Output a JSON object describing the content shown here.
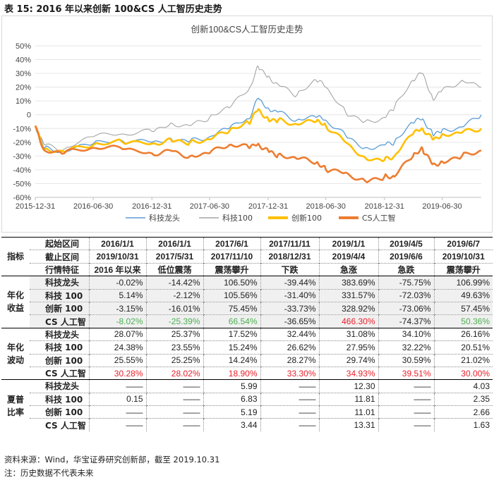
{
  "caption": "表 15: 2016 年以来创新 100&CS 人工智历史走势",
  "colors": {
    "tech_leader": "#5b9bd5",
    "tech100": "#a5a5a5",
    "innov100": "#ffc000",
    "cs_ai": "#ed7d31",
    "green": "#4caf50",
    "red": "#e8202a"
  },
  "chart_data": {
    "type": "line",
    "title": "创新100&CS人工智历史走势",
    "x_tick_labels": [
      "2015-12-31",
      "2016-06-30",
      "2016-12-31",
      "2017-06-30",
      "2017-12-31",
      "2018-06-30",
      "2018-12-31",
      "2019-06-30"
    ],
    "y_tick_labels": [
      "50%",
      "40%",
      "30%",
      "20%",
      "10%",
      "0",
      "-10%",
      "-20%",
      "-30%",
      "-40%",
      "-50%",
      "-60%"
    ],
    "ylim": [
      -60,
      50
    ],
    "y_unit": "%",
    "x_range": [
      "2015-12-31",
      "2019-10-31"
    ],
    "series": [
      {
        "name": "科技100",
        "color": "#a5a5a5",
        "points": [
          [
            "2015-12-31",
            -8
          ],
          [
            "2016-01-29",
            -22
          ],
          [
            "2016-03-31",
            -25
          ],
          [
            "2016-06-30",
            -16
          ],
          [
            "2016-09-30",
            -14
          ],
          [
            "2016-12-31",
            -12
          ],
          [
            "2017-02-28",
            -6
          ],
          [
            "2017-04-30",
            -8
          ],
          [
            "2017-06-30",
            -2
          ],
          [
            "2017-08-31",
            5
          ],
          [
            "2017-10-31",
            18
          ],
          [
            "2017-11-30",
            35
          ],
          [
            "2017-12-31",
            28
          ],
          [
            "2018-01-31",
            22
          ],
          [
            "2018-03-31",
            14
          ],
          [
            "2018-05-31",
            25
          ],
          [
            "2018-06-30",
            20
          ],
          [
            "2018-08-31",
            2
          ],
          [
            "2018-10-31",
            -5
          ],
          [
            "2018-12-31",
            -2
          ],
          [
            "2019-01-31",
            5
          ],
          [
            "2019-03-31",
            25
          ],
          [
            "2019-04-30",
            30
          ],
          [
            "2019-05-31",
            12
          ],
          [
            "2019-06-30",
            18
          ],
          [
            "2019-08-31",
            25
          ],
          [
            "2019-10-31",
            20
          ]
        ]
      },
      {
        "name": "科技龙头",
        "color": "#5b9bd5",
        "points": [
          [
            "2015-12-31",
            -8
          ],
          [
            "2016-01-29",
            -24
          ],
          [
            "2016-03-31",
            -27
          ],
          [
            "2016-06-30",
            -21
          ],
          [
            "2016-09-30",
            -19
          ],
          [
            "2016-12-31",
            -20
          ],
          [
            "2017-02-28",
            -17
          ],
          [
            "2017-04-30",
            -19
          ],
          [
            "2017-06-30",
            -16
          ],
          [
            "2017-08-31",
            -10
          ],
          [
            "2017-10-31",
            -3
          ],
          [
            "2017-11-30",
            12
          ],
          [
            "2017-12-31",
            5
          ],
          [
            "2018-01-31",
            2
          ],
          [
            "2018-03-31",
            -4
          ],
          [
            "2018-05-31",
            -2
          ],
          [
            "2018-06-30",
            -4
          ],
          [
            "2018-08-31",
            -15
          ],
          [
            "2018-10-31",
            -24
          ],
          [
            "2018-12-31",
            -22
          ],
          [
            "2019-01-31",
            -20
          ],
          [
            "2019-03-31",
            -6
          ],
          [
            "2019-04-30",
            -3
          ],
          [
            "2019-05-31",
            -14
          ],
          [
            "2019-06-30",
            -11
          ],
          [
            "2019-08-31",
            -9
          ],
          [
            "2019-10-31",
            -0.02
          ]
        ]
      },
      {
        "name": "创新100",
        "color": "#ffc000",
        "points": [
          [
            "2015-12-31",
            -8
          ],
          [
            "2016-01-29",
            -25
          ],
          [
            "2016-03-31",
            -27
          ],
          [
            "2016-06-30",
            -22
          ],
          [
            "2016-09-30",
            -20
          ],
          [
            "2016-12-31",
            -21
          ],
          [
            "2017-02-28",
            -18
          ],
          [
            "2017-04-30",
            -20
          ],
          [
            "2017-06-30",
            -18
          ],
          [
            "2017-08-31",
            -12
          ],
          [
            "2017-10-31",
            -6
          ],
          [
            "2017-11-30",
            4
          ],
          [
            "2017-12-31",
            -3
          ],
          [
            "2018-01-31",
            -4
          ],
          [
            "2018-03-31",
            -7
          ],
          [
            "2018-05-31",
            -5
          ],
          [
            "2018-06-30",
            -8
          ],
          [
            "2018-08-31",
            -20
          ],
          [
            "2018-10-31",
            -31
          ],
          [
            "2018-12-31",
            -33
          ],
          [
            "2019-01-31",
            -30
          ],
          [
            "2019-03-31",
            -14
          ],
          [
            "2019-04-30",
            -10
          ],
          [
            "2019-05-31",
            -18
          ],
          [
            "2019-06-30",
            -14
          ],
          [
            "2019-08-31",
            -13
          ],
          [
            "2019-10-31",
            -10
          ]
        ]
      },
      {
        "name": "CS人工智",
        "color": "#ed7d31",
        "points": [
          [
            "2015-12-31",
            -8
          ],
          [
            "2016-01-29",
            -26
          ],
          [
            "2016-03-31",
            -28
          ],
          [
            "2016-06-30",
            -24
          ],
          [
            "2016-09-30",
            -25
          ],
          [
            "2016-12-31",
            -28
          ],
          [
            "2017-02-28",
            -26
          ],
          [
            "2017-04-30",
            -30
          ],
          [
            "2017-06-30",
            -28
          ],
          [
            "2017-08-31",
            -22
          ],
          [
            "2017-10-31",
            -24
          ],
          [
            "2017-11-30",
            -21
          ],
          [
            "2017-12-31",
            -26
          ],
          [
            "2018-01-31",
            -29
          ],
          [
            "2018-03-31",
            -32
          ],
          [
            "2018-05-31",
            -35
          ],
          [
            "2018-06-30",
            -40
          ],
          [
            "2018-08-31",
            -42
          ],
          [
            "2018-10-31",
            -48
          ],
          [
            "2018-12-31",
            -45
          ],
          [
            "2019-01-31",
            -45
          ],
          [
            "2019-03-31",
            -30
          ],
          [
            "2019-04-30",
            -25
          ],
          [
            "2019-05-31",
            -36
          ],
          [
            "2019-06-30",
            -34
          ],
          [
            "2019-08-31",
            -30
          ],
          [
            "2019-10-31",
            -26
          ]
        ]
      }
    ],
    "legend": [
      "科技龙头",
      "科技100",
      "创新100",
      "CS人工智"
    ],
    "legend_position": "bottom"
  },
  "table": {
    "header_rows": [
      {
        "label": "起始区间",
        "values": [
          "2016/1/1",
          "2016/1/1",
          "2017/6/1",
          "2017/11/11",
          "2019/1/1",
          "2019/4/5",
          "2019/6/7"
        ]
      },
      {
        "group": "指标",
        "label": "截止区间",
        "values": [
          "2019/10/31",
          "2017/5/31",
          "2017/11/10",
          "2018/12/31",
          "2019/4/4",
          "2019/6/6",
          "2019/10/31"
        ]
      },
      {
        "label": "行情特征",
        "values": [
          "2016 年以来",
          "低位震荡",
          "震荡攀升",
          "下跌",
          "急涨",
          "急跌",
          "震荡攀升"
        ]
      }
    ],
    "groups": [
      {
        "name_top": "年化",
        "name_bottom": "收益",
        "rows": [
          {
            "label": "科技龙头",
            "values": [
              "-0.02%",
              "-14.42%",
              "106.50%",
              "-39.44%",
              "383.69%",
              "-75.75%",
              "106.99%"
            ]
          },
          {
            "label": "科技 100",
            "values": [
              "5.14%",
              "-2.12%",
              "105.56%",
              "-31.40%",
              "331.57%",
              "-72.03%",
              "49.63%"
            ]
          },
          {
            "label": "创新 100",
            "values": [
              "-3.15%",
              "-16.01%",
              "75.45%",
              "-33.73%",
              "328.92%",
              "-73.06%",
              "57.45%"
            ]
          },
          {
            "label": "CS 人工智",
            "values": [
              "-8.02%",
              "-25.39%",
              "66.54%",
              "-36.65%",
              "466.30%",
              "-74.37%",
              "50.36%"
            ],
            "colors": [
              "green",
              "green",
              "green",
              "",
              "red",
              "",
              "green"
            ]
          }
        ]
      },
      {
        "name_top": "年化",
        "name_bottom": "波动",
        "rows": [
          {
            "label": "科技龙头",
            "values": [
              "28.07%",
              "25.37%",
              "17.52%",
              "32.44%",
              "31.08%",
              "34.10%",
              "26.16%"
            ]
          },
          {
            "label": "科技 100",
            "values": [
              "24.38%",
              "23.55%",
              "15.24%",
              "26.62%",
              "27.95%",
              "32.22%",
              "20.51%"
            ]
          },
          {
            "label": "创新 100",
            "values": [
              "25.55%",
              "25.25%",
              "14.24%",
              "28.27%",
              "29.74%",
              "30.59%",
              "21.02%"
            ]
          },
          {
            "label": "CS 人工智",
            "values": [
              "30.28%",
              "28.02%",
              "18.90%",
              "33.30%",
              "34.93%",
              "39.51%",
              "30.00%"
            ],
            "colors": [
              "red",
              "red",
              "red",
              "red",
              "red",
              "red",
              "red"
            ]
          }
        ]
      },
      {
        "name_top": "夏普",
        "name_bottom": "比率",
        "rows": [
          {
            "label": "科技龙头",
            "values": [
              "——",
              "——",
              "5.99",
              "——",
              "12.30",
              "——",
              "4.03"
            ]
          },
          {
            "label": "科技 100",
            "values": [
              "0.15",
              "——",
              "6.83",
              "——",
              "11.81",
              "——",
              "2.35"
            ]
          },
          {
            "label": "创新 100",
            "values": [
              "——",
              "——",
              "5.19",
              "——",
              "11.01",
              "——",
              "2.66"
            ]
          },
          {
            "label": "CS 人工智",
            "values": [
              "——",
              "——",
              "3.44",
              "——",
              "13.31",
              "——",
              "1.63"
            ]
          }
        ]
      }
    ]
  },
  "source": "资料来源：Wind，华宝证券研究创新部，截至 2019.10.31",
  "note": "注：历史数据不代表未来"
}
